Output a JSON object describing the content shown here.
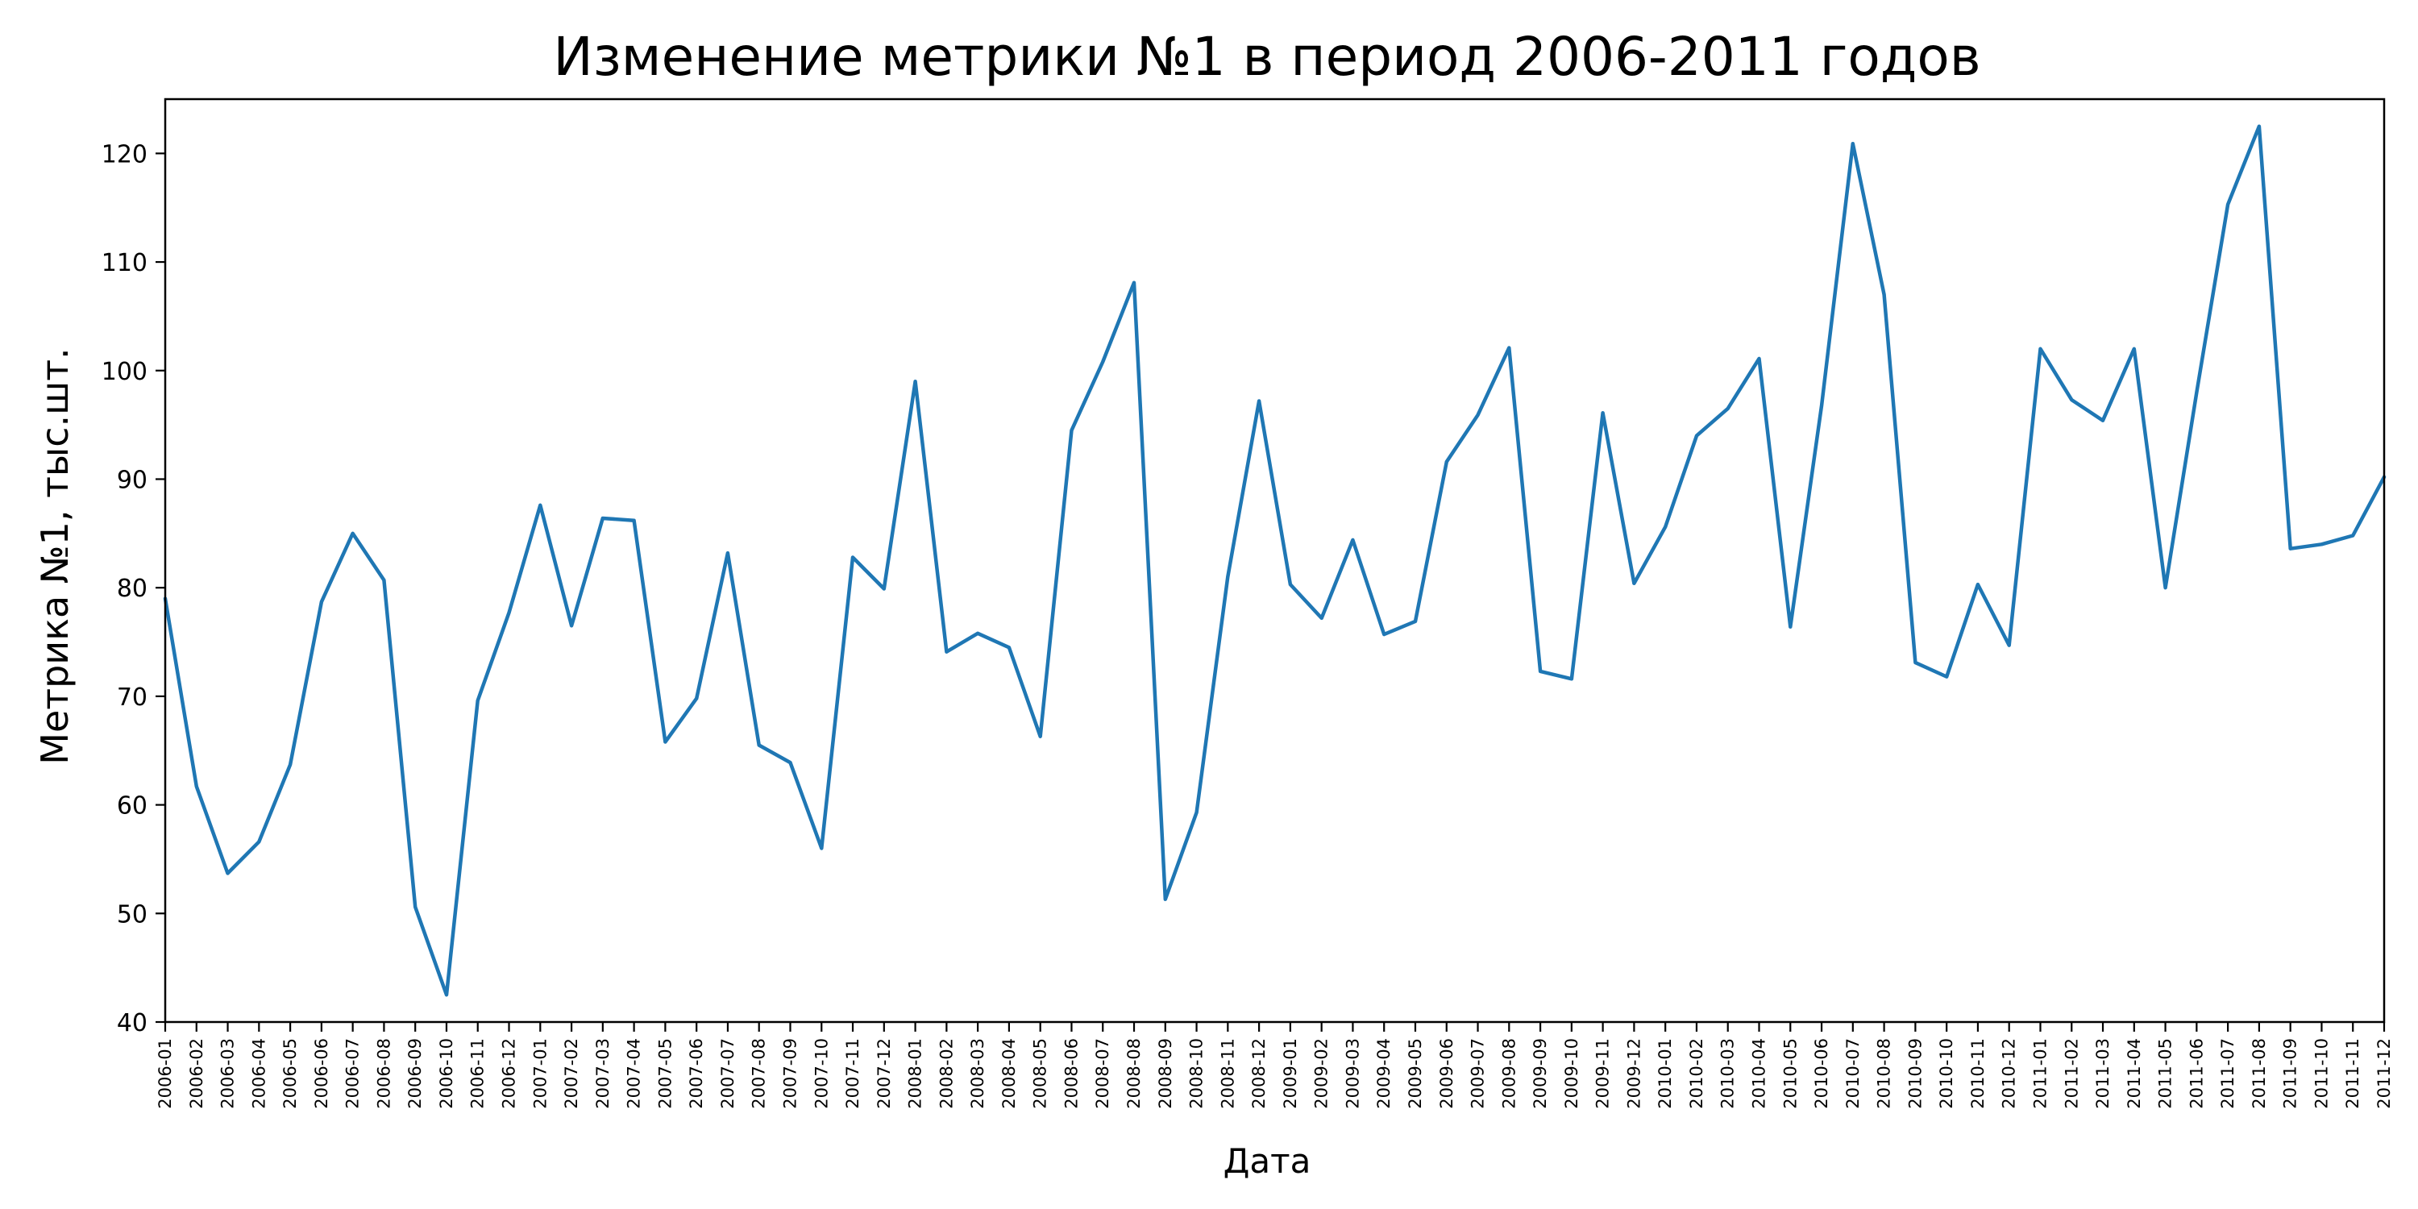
{
  "chart_data": {
    "type": "line",
    "title": "Изменение метрики №1 в период 2006-2011 годов",
    "xlabel": "Дата",
    "ylabel": "Метрика №1, тыс.шт.",
    "ylim": [
      40,
      125
    ],
    "yticks": [
      40,
      50,
      60,
      70,
      80,
      90,
      100,
      110,
      120
    ],
    "grid": false,
    "legend": "none",
    "line_color": "#1f77b4",
    "x": [
      "2006-01",
      "2006-02",
      "2006-03",
      "2006-04",
      "2006-05",
      "2006-06",
      "2006-07",
      "2006-08",
      "2006-09",
      "2006-10",
      "2006-11",
      "2006-12",
      "2007-01",
      "2007-02",
      "2007-03",
      "2007-04",
      "2007-05",
      "2007-06",
      "2007-07",
      "2007-08",
      "2007-09",
      "2007-10",
      "2007-11",
      "2007-12",
      "2008-01",
      "2008-02",
      "2008-03",
      "2008-04",
      "2008-05",
      "2008-06",
      "2008-07",
      "2008-08",
      "2008-09",
      "2008-10",
      "2008-11",
      "2008-12",
      "2009-01",
      "2009-02",
      "2009-03",
      "2009-04",
      "2009-05",
      "2009-06",
      "2009-07",
      "2009-08",
      "2009-09",
      "2009-10",
      "2009-11",
      "2009-12",
      "2010-01",
      "2010-02",
      "2010-03",
      "2010-04",
      "2010-05",
      "2010-06",
      "2010-07",
      "2010-08",
      "2010-09",
      "2010-10",
      "2010-11",
      "2010-12",
      "2011-01",
      "2011-02",
      "2011-03",
      "2011-04",
      "2011-05",
      "2011-06",
      "2011-07",
      "2011-08",
      "2011-09",
      "2011-10",
      "2011-11",
      "2011-12"
    ],
    "series": [
      {
        "values": [
          79.0,
          61.7,
          53.7,
          56.6,
          63.7,
          78.7,
          85.0,
          80.7,
          50.6,
          42.5,
          69.6,
          77.7,
          87.6,
          76.5,
          86.4,
          86.2,
          65.8,
          69.8,
          83.2,
          65.5,
          63.9,
          56.0,
          82.8,
          79.9,
          99.0,
          74.1,
          75.8,
          74.5,
          66.3,
          94.5,
          100.8,
          108.1,
          51.3,
          59.3,
          81.0,
          97.2,
          80.3,
          77.2,
          84.4,
          75.7,
          76.9,
          91.6,
          95.9,
          102.1,
          72.3,
          71.6,
          96.1,
          80.4,
          85.6,
          94.0,
          96.5,
          101.1,
          76.4,
          96.8,
          120.9,
          107.0,
          73.1,
          71.8,
          80.3,
          74.7,
          102.0,
          97.3,
          95.4,
          102.0,
          80.0,
          98.0,
          115.3,
          122.5,
          83.6,
          84.0,
          84.8,
          90.2
        ]
      }
    ]
  }
}
